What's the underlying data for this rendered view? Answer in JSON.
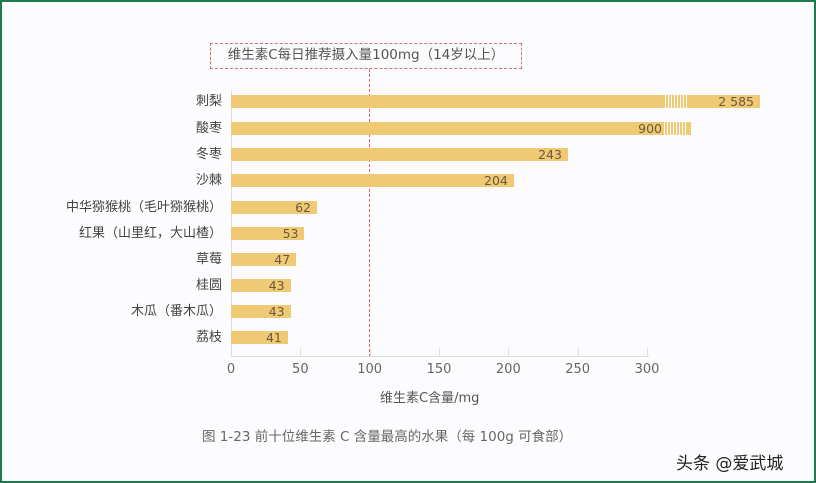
{
  "chart_data": {
    "type": "bar",
    "orientation": "horizontal",
    "title": "图 1-23  前十位维生素 C 含量最高的水果（每 100g 可食部）",
    "xlabel": "维生素C含量/mg",
    "ylabel": "",
    "xlim": [
      0,
      300
    ],
    "xticks": [
      "0",
      "50",
      "100",
      "150",
      "200",
      "250",
      "300"
    ],
    "grid": false,
    "categories": [
      "刺梨",
      "酸枣",
      "冬枣",
      "沙棘",
      "中华猕猴桃（毛叶猕猴桃）",
      "红果（山里红，大山楂）",
      "草莓",
      "桂圆",
      "木瓜（番木瓜）",
      "荔枝"
    ],
    "values": [
      2585,
      900,
      243,
      204,
      62,
      53,
      47,
      43,
      43,
      41
    ],
    "value_labels": [
      "2 585",
      "900",
      "243",
      "204",
      "62",
      "53",
      "47",
      "43",
      "43",
      "41"
    ],
    "axis_breaks": [
      true,
      true,
      false,
      false,
      false,
      false,
      false,
      false,
      false,
      false
    ],
    "reference_line": {
      "x": 100,
      "label": "维生素C每日推荐摄入量100mg（14岁以上）",
      "style": "dashed",
      "color": "#e06a6a"
    },
    "bar_color": "#f0c975"
  },
  "annotation": "维生素C每日推荐摄入量100mg（14岁以上）",
  "caption": "图 1-23  前十位维生素 C 含量最高的水果（每 100g 可食部）",
  "watermark": "头条 @爱武城",
  "colors": {
    "bar": "#f0c975",
    "reference": "#e06a6a",
    "frame": "#1f7a4a"
  }
}
